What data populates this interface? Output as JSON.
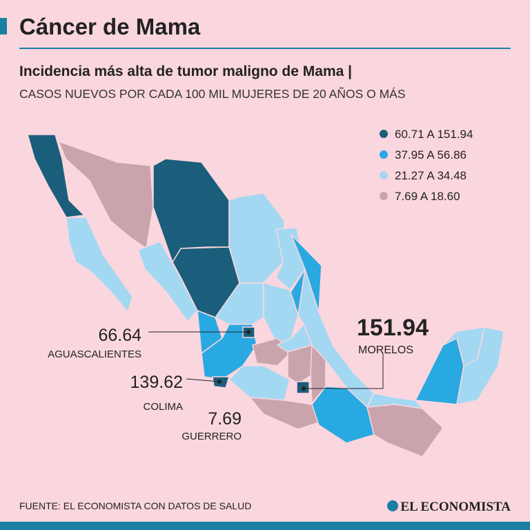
{
  "header": {
    "title": "Cáncer de Mama",
    "subtitle": "Incidencia más alta de tumor maligno de Mama |",
    "description": "CASOS NUEVOS POR CADA 100 MIL MUJERES DE 20 AÑOS O MÁS"
  },
  "legend": [
    {
      "label": "60.71 A 151.94",
      "color": "#1b5e7b"
    },
    {
      "label": "37.95 A 56.86",
      "color": "#29a9e1"
    },
    {
      "label": "21.27 A 34.48",
      "color": "#a3d8f2"
    },
    {
      "label": "7.69 A 18.60",
      "color": "#c9a4ad"
    }
  ],
  "callouts": [
    {
      "value": 66.64,
      "label": "AGUASCALIENTES"
    },
    {
      "value": 139.62,
      "label": "COLIMA"
    },
    {
      "value": 7.69,
      "label": "GUERRERO"
    },
    {
      "value": 151.94,
      "label": "MORELOS"
    }
  ],
  "footer": {
    "source": "FUENTE: EL ECONOMISTA CON DATOS DE SALUD",
    "brand": "EL ECONOMISTA"
  }
}
